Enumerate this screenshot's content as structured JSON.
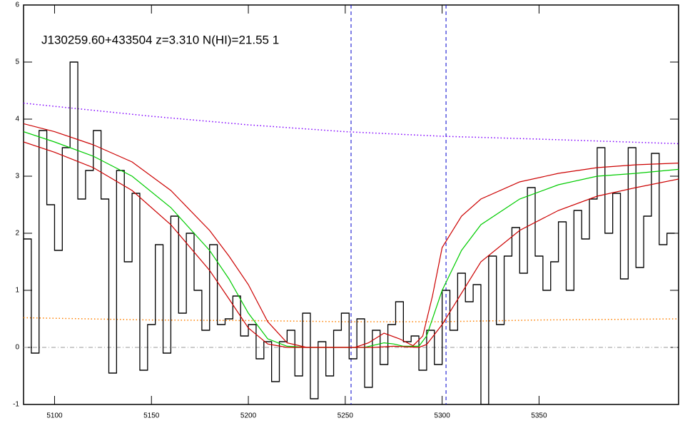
{
  "chart_data": {
    "type": "line",
    "title": "J130259.60+433504 z=3.310 N(HI)=21.55 1",
    "xlim": [
      5084,
      5422
    ],
    "ylim": [
      -1,
      6
    ],
    "xticks": [
      5100,
      5150,
      5200,
      5250,
      5300,
      5350
    ],
    "yticks": [
      -1,
      0,
      1,
      2,
      3,
      4,
      5,
      6
    ],
    "hlines": {
      "values": [
        0
      ],
      "color": "#999999"
    },
    "vlines": {
      "values": [
        5253,
        5302
      ],
      "color": "#0000cc"
    },
    "series": [
      {
        "style": "dotted",
        "color": "#8000ff",
        "x": [
          5084,
          5150,
          5200,
          5250,
          5300,
          5350,
          5422
        ],
        "values": [
          4.28,
          4.05,
          3.9,
          3.78,
          3.7,
          3.65,
          3.57
        ]
      },
      {
        "style": "dotted",
        "color": "#ff8000",
        "x": [
          5084,
          5150,
          5200,
          5250,
          5300,
          5350,
          5422
        ],
        "values": [
          0.52,
          0.48,
          0.47,
          0.45,
          0.45,
          0.48,
          0.5
        ]
      },
      {
        "style": "step",
        "color": "#000000",
        "x": [
          5086,
          5090,
          5094,
          5098,
          5102,
          5106,
          5110,
          5114,
          5118,
          5122,
          5126,
          5130,
          5134,
          5138,
          5142,
          5146,
          5150,
          5154,
          5158,
          5162,
          5166,
          5170,
          5174,
          5178,
          5182,
          5186,
          5190,
          5194,
          5198,
          5202,
          5206,
          5210,
          5214,
          5218,
          5222,
          5226,
          5230,
          5234,
          5238,
          5242,
          5246,
          5250,
          5254,
          5258,
          5262,
          5266,
          5270,
          5274,
          5278,
          5282,
          5286,
          5290,
          5294,
          5298,
          5302,
          5306,
          5310,
          5314,
          5318,
          5322,
          5326,
          5330,
          5334,
          5338,
          5342,
          5346,
          5350,
          5354,
          5358,
          5362,
          5366,
          5370,
          5374,
          5378,
          5382,
          5386,
          5390,
          5394,
          5398,
          5402,
          5406,
          5410,
          5414,
          5418
        ],
        "values": [
          1.9,
          -0.1,
          3.8,
          2.5,
          1.7,
          3.5,
          5.0,
          2.6,
          3.1,
          3.8,
          2.6,
          -0.45,
          3.1,
          1.5,
          2.7,
          -0.4,
          0.4,
          1.8,
          -0.1,
          2.3,
          0.6,
          2.0,
          1.0,
          0.3,
          1.8,
          0.4,
          0.5,
          0.9,
          0.2,
          0.4,
          -0.2,
          0.1,
          -0.6,
          0.1,
          0.3,
          -0.5,
          0.6,
          -0.9,
          0.1,
          -0.5,
          0.3,
          0.6,
          -0.2,
          0.5,
          -0.7,
          0.3,
          -0.3,
          0.4,
          0.8,
          0.1,
          0.2,
          -0.4,
          0.3,
          -0.3,
          1.0,
          0.3,
          1.3,
          0.8,
          1.1,
          -1.0,
          1.6,
          0.4,
          1.6,
          2.1,
          1.3,
          2.8,
          1.6,
          1.0,
          1.5,
          2.2,
          1.0,
          2.4,
          1.9,
          2.6,
          3.5,
          2.0,
          2.7,
          1.2,
          3.5,
          1.4,
          2.3,
          3.4,
          1.8,
          2.0
        ]
      },
      {
        "style": "solid",
        "color": "#00cc00",
        "x": [
          5084,
          5100,
          5120,
          5140,
          5160,
          5180,
          5190,
          5200,
          5210,
          5220,
          5230,
          5260,
          5265,
          5270,
          5275,
          5280,
          5288,
          5292,
          5300,
          5310,
          5320,
          5340,
          5360,
          5380,
          5400,
          5422
        ],
        "values": [
          3.78,
          3.6,
          3.35,
          3.0,
          2.45,
          1.7,
          1.2,
          0.6,
          0.15,
          0.02,
          0.0,
          0.0,
          0.04,
          0.08,
          0.06,
          0.02,
          0.02,
          0.2,
          1.0,
          1.7,
          2.15,
          2.6,
          2.85,
          3.0,
          3.05,
          3.12
        ]
      },
      {
        "style": "solid",
        "color": "#cc0000",
        "x": [
          5084,
          5100,
          5120,
          5140,
          5160,
          5180,
          5190,
          5200,
          5210,
          5220,
          5230,
          5255,
          5262,
          5270,
          5278,
          5285,
          5290,
          5295,
          5300,
          5310,
          5320,
          5340,
          5360,
          5380,
          5400,
          5422
        ],
        "values": [
          3.92,
          3.78,
          3.55,
          3.25,
          2.75,
          2.05,
          1.6,
          1.1,
          0.45,
          0.08,
          0.0,
          0.0,
          0.08,
          0.25,
          0.15,
          0.03,
          0.2,
          0.9,
          1.75,
          2.3,
          2.6,
          2.9,
          3.05,
          3.15,
          3.2,
          3.23
        ]
      },
      {
        "style": "solid",
        "color": "#cc0000",
        "x": [
          5084,
          5100,
          5120,
          5140,
          5160,
          5180,
          5190,
          5200,
          5210,
          5220,
          5230,
          5265,
          5275,
          5288,
          5292,
          5300,
          5310,
          5320,
          5340,
          5360,
          5380,
          5400,
          5422
        ],
        "values": [
          3.6,
          3.42,
          3.15,
          2.75,
          2.15,
          1.35,
          0.85,
          0.34,
          0.06,
          0.0,
          0.0,
          0.0,
          0.02,
          0.0,
          0.05,
          0.4,
          0.95,
          1.5,
          2.05,
          2.4,
          2.65,
          2.8,
          2.95
        ]
      }
    ]
  }
}
